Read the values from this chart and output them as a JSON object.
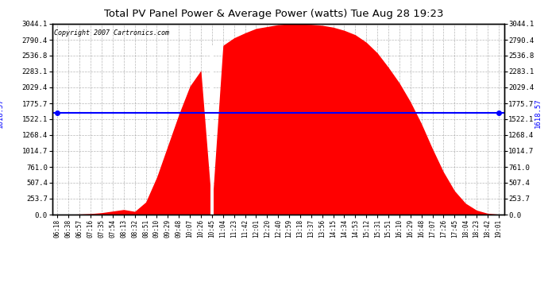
{
  "title": "Total PV Panel Power & Average Power (watts) Tue Aug 28 19:23",
  "copyright": "Copyright 2007 Cartronics.com",
  "average_value": 1618.57,
  "y_max": 3044.1,
  "y_ticks": [
    0.0,
    253.7,
    507.4,
    761.0,
    1014.7,
    1268.4,
    1522.1,
    1775.7,
    2029.4,
    2283.1,
    2536.8,
    2790.4,
    3044.1
  ],
  "fill_color": "#FF0000",
  "avg_line_color": "#0000FF",
  "bg_color": "#FFFFFF",
  "plot_bg_color": "#FFFFFF",
  "grid_color": "#888888",
  "border_color": "#000000",
  "x_labels": [
    "06:18",
    "06:38",
    "06:57",
    "07:16",
    "07:35",
    "07:54",
    "08:13",
    "08:32",
    "08:51",
    "09:10",
    "09:29",
    "09:48",
    "10:07",
    "10:26",
    "10:45",
    "11:04",
    "11:23",
    "11:42",
    "12:01",
    "12:20",
    "12:40",
    "12:59",
    "13:18",
    "13:37",
    "13:56",
    "14:15",
    "14:34",
    "14:53",
    "15:12",
    "15:31",
    "15:51",
    "16:10",
    "16:29",
    "16:48",
    "17:07",
    "17:26",
    "17:45",
    "18:04",
    "18:23",
    "18:42",
    "19:01"
  ],
  "values": [
    2,
    4,
    8,
    15,
    30,
    55,
    80,
    50,
    200,
    600,
    1100,
    1600,
    2050,
    2300,
    100,
    2700,
    2820,
    2900,
    2970,
    3000,
    3030,
    3044,
    3040,
    3035,
    3020,
    2990,
    2940,
    2870,
    2750,
    2580,
    2350,
    2100,
    1800,
    1450,
    1050,
    680,
    380,
    180,
    70,
    20,
    5
  ]
}
